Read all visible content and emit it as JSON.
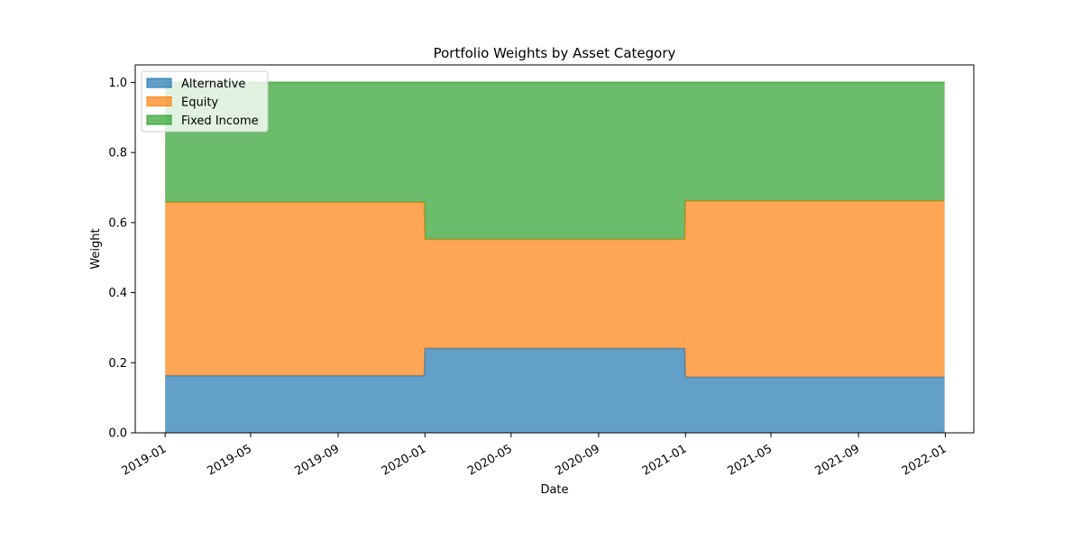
{
  "chart_data": {
    "type": "area",
    "stacked": true,
    "title": "Portfolio Weights by Asset Category",
    "xlabel": "Date",
    "ylabel": "Weight",
    "x": [
      "2019-01-01",
      "2019-12-31",
      "2020-01-01",
      "2020-12-31",
      "2021-01-01",
      "2021-12-31"
    ],
    "series": [
      {
        "name": "Alternative",
        "values": [
          0.163,
          0.163,
          0.241,
          0.241,
          0.159,
          0.159
        ],
        "color": "#1f77b4"
      },
      {
        "name": "Equity",
        "values": [
          0.495,
          0.495,
          0.311,
          0.311,
          0.503,
          0.503
        ],
        "color": "#ff7f0e"
      },
      {
        "name": "Fixed Income",
        "values": [
          0.342,
          0.342,
          0.448,
          0.448,
          0.338,
          0.338
        ],
        "color": "#2ca02c"
      }
    ],
    "xlim": [
      "2018-11-20",
      "2022-02-10"
    ],
    "ylim": [
      0,
      1.05
    ],
    "x_ticks": [
      "2019-01",
      "2019-05",
      "2019-09",
      "2020-01",
      "2020-05",
      "2020-09",
      "2021-01",
      "2021-05",
      "2021-09",
      "2022-01"
    ],
    "y_ticks": [
      "0.0",
      "0.2",
      "0.4",
      "0.6",
      "0.8",
      "1.0"
    ],
    "legend_position": "top-left",
    "grid": false
  }
}
